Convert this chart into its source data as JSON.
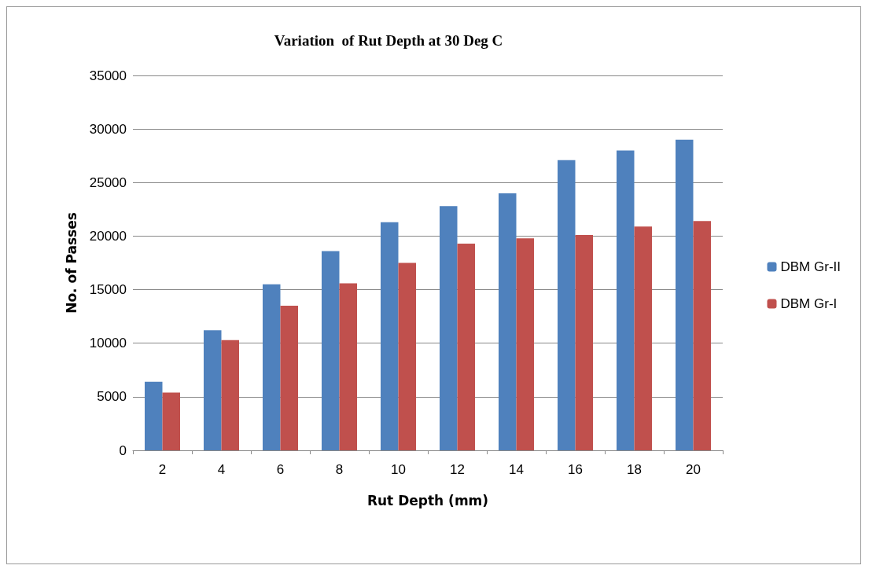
{
  "chart_data": {
    "type": "bar",
    "title": "Variation  of Rut Depth at 30 Deg C",
    "xlabel": "Rut Depth (mm)",
    "ylabel": "No. of Passes",
    "categories": [
      "2",
      "4",
      "6",
      "8",
      "10",
      "12",
      "14",
      "16",
      "18",
      "20"
    ],
    "series": [
      {
        "name": "DBM Gr-II",
        "color": "#4f81bd",
        "values": [
          6400,
          11200,
          15500,
          18600,
          21300,
          22800,
          24000,
          27100,
          28000,
          29000
        ]
      },
      {
        "name": "DBM Gr-I",
        "color": "#c0504d",
        "values": [
          5400,
          10300,
          13500,
          15600,
          17500,
          19300,
          19800,
          20100,
          20900,
          21400
        ]
      }
    ],
    "ylim": [
      0,
      35000
    ],
    "yticks": [
      0,
      5000,
      10000,
      15000,
      20000,
      25000,
      30000,
      35000
    ],
    "grid": "y",
    "legend": "right"
  }
}
